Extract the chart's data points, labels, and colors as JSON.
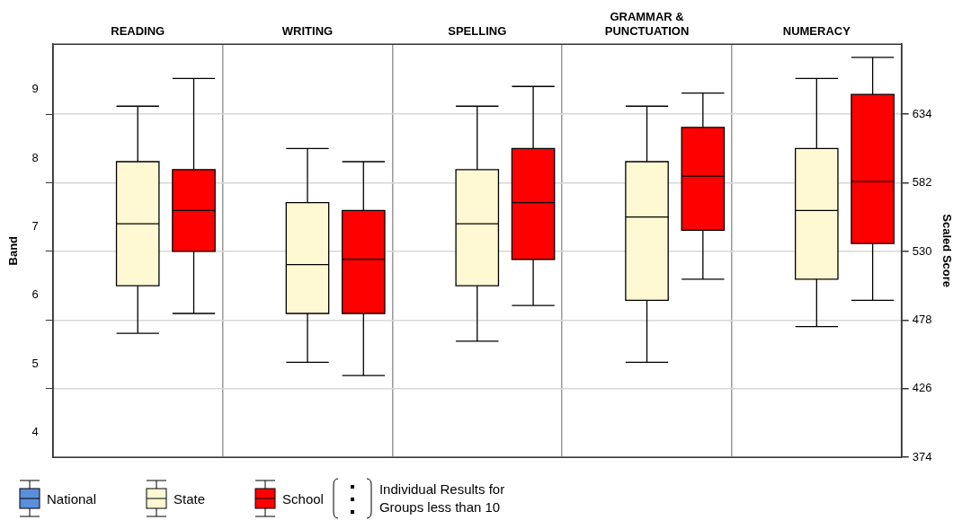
{
  "chart_data": {
    "type": "box",
    "categories": [
      "READING",
      "WRITING",
      "SPELLING",
      "GRAMMAR & PUNCTUATION",
      "NUMERACY"
    ],
    "ylabel": "Band",
    "y2label": "Scaled Score",
    "ylim": [
      3.64,
      9.66
    ],
    "yticks": [
      4,
      5,
      6,
      7,
      8,
      9,
      {
        "value": 4.64,
        "label": null
      },
      {
        "value": 5.64,
        "label": null
      },
      {
        "value": 6.64,
        "label": null
      },
      {
        "value": 7.64,
        "label": null
      },
      {
        "value": 8.64,
        "label": null
      }
    ],
    "y2lim": [
      374,
      687
    ],
    "y2ticks": [
      374,
      426,
      478,
      530,
      582,
      634
    ],
    "grid": true,
    "legend": "bottom",
    "series": [
      {
        "name": "National",
        "color": "#5b8fdc",
        "axis": "y2",
        "boxes": [
          null,
          null,
          null,
          null,
          null
        ]
      },
      {
        "name": "State",
        "color": "#fef9d2",
        "axis": "y2",
        "boxes": [
          {
            "low": 468,
            "q1": 504,
            "median": 551,
            "q3": 598,
            "high": 640
          },
          {
            "low": 446,
            "q1": 483,
            "median": 520,
            "q3": 567,
            "high": 608
          },
          {
            "low": 462,
            "q1": 504,
            "median": 551,
            "q3": 592,
            "high": 640
          },
          {
            "low": 446,
            "q1": 493,
            "median": 556,
            "q3": 598,
            "high": 640
          },
          {
            "low": 473,
            "q1": 509,
            "median": 561,
            "q3": 608,
            "high": 661
          }
        ]
      },
      {
        "name": "School",
        "color": "#ff0000",
        "axis": "y2",
        "boxes": [
          {
            "low": 483,
            "q1": 530,
            "median": 561,
            "q3": 592,
            "high": 661
          },
          {
            "low": 436,
            "q1": 483,
            "median": 524,
            "q3": 561,
            "high": 598
          },
          {
            "low": 489,
            "q1": 524,
            "median": 567,
            "q3": 608,
            "high": 655
          },
          {
            "low": 509,
            "q1": 546,
            "median": 587,
            "q3": 624,
            "high": 650
          },
          {
            "low": 493,
            "q1": 536,
            "median": 583,
            "q3": 649,
            "high": 677
          }
        ]
      }
    ],
    "annotations": [
      "Individual Results for Groups less than 10"
    ]
  }
}
